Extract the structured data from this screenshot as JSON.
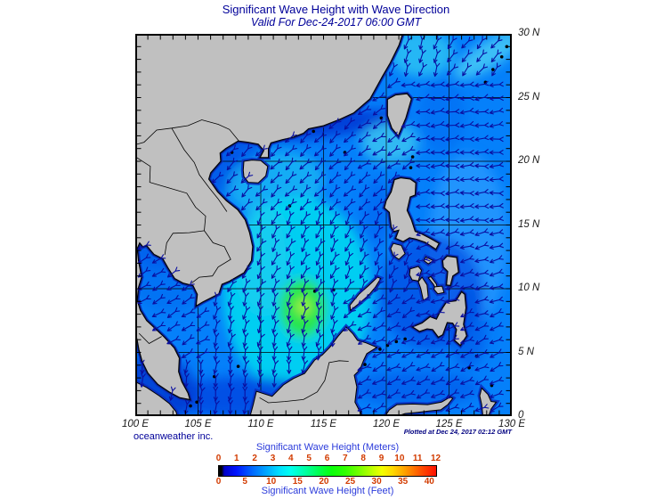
{
  "title": "Significant Wave Height with Wave Direction",
  "subtitle": "Valid For Dec-24-2017 06:00 GMT",
  "credit": "oceanweather inc.",
  "plotted_at": "Plotted at Dec 24, 2017 02:12 GMT",
  "map": {
    "lon_labels": [
      "100 E",
      "105 E",
      "110 E",
      "115 E",
      "120 E",
      "125 E",
      "130 E"
    ],
    "lat_labels": [
      "30 N",
      "25 N",
      "20 N",
      "15 N",
      "10 N",
      "5 N",
      "0"
    ],
    "lon_range": [
      100,
      130
    ],
    "lat_range": [
      0,
      30
    ],
    "grid_step_deg": 5,
    "tick_step_deg": 1
  },
  "legend": {
    "meters_title": "Significant Wave Height (Meters)",
    "feet_title": "Significant Wave Height (Feet)",
    "meters_ticks": [
      "0",
      "1",
      "2",
      "3",
      "4",
      "5",
      "6",
      "7",
      "8",
      "9",
      "10",
      "11",
      "12"
    ],
    "feet_ticks": [
      "0",
      "5",
      "10",
      "15",
      "20",
      "25",
      "30",
      "35",
      "40"
    ]
  },
  "colors": {
    "title_text": "#000099",
    "legend_title_text": "#2b3bdb",
    "legend_tick_text": "#d23b00",
    "land": "#c0c0c0",
    "coastline": "#000000",
    "ocean_base": "#0580fa",
    "arrow": "#0a0fa0",
    "colorbar_stops": [
      [
        0,
        "#000000"
      ],
      [
        1.2,
        "#000000"
      ],
      [
        2.5,
        "#0000c8"
      ],
      [
        8,
        "#0014ff"
      ],
      [
        15,
        "#0064ff"
      ],
      [
        22,
        "#00a8ff"
      ],
      [
        28,
        "#00e0ff"
      ],
      [
        33,
        "#00fff0"
      ],
      [
        40,
        "#00ffa0"
      ],
      [
        46,
        "#00ff50"
      ],
      [
        52,
        "#0aff0a"
      ],
      [
        58,
        "#30ff00"
      ],
      [
        64,
        "#70ff00"
      ],
      [
        70,
        "#b8ff00"
      ],
      [
        75,
        "#f2ff00"
      ],
      [
        80,
        "#ffd800"
      ],
      [
        86,
        "#ff9c00"
      ],
      [
        93,
        "#ff5000"
      ],
      [
        100,
        "#ff0f00"
      ]
    ]
  }
}
